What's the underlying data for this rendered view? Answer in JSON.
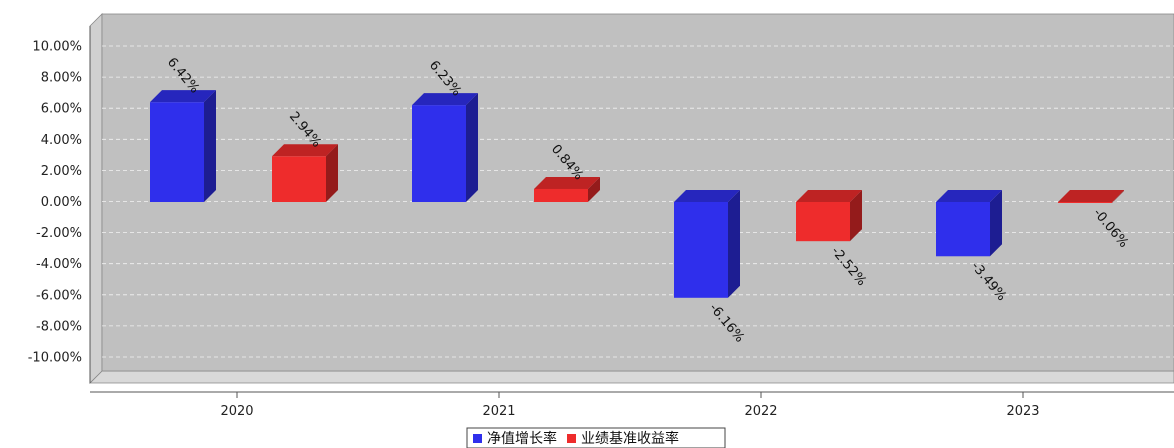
{
  "chart_data": {
    "type": "bar",
    "categories": [
      "2020",
      "2021",
      "2022",
      "2023"
    ],
    "series": [
      {
        "name": "净值增长率",
        "color": "#2f2fec",
        "values": [
          6.42,
          6.23,
          -6.16,
          -3.49
        ],
        "labels": [
          "6.42%",
          "6.23%",
          "-6.16%",
          "-3.49%"
        ]
      },
      {
        "name": "业绩基准收益率",
        "color": "#ee2c2c",
        "values": [
          2.94,
          0.84,
          -2.52,
          -0.06
        ],
        "labels": [
          "2.94%",
          "0.84%",
          "-2.52%",
          "-0.06%"
        ]
      }
    ],
    "ylim": [
      -12,
      12
    ],
    "yticks": [
      10,
      8,
      6,
      4,
      2,
      0,
      -2,
      -4,
      -6,
      -8,
      -10
    ],
    "ytick_labels": [
      "10.00%",
      "8.00%",
      "6.00%",
      "4.00%",
      "2.00%",
      "0.00%",
      "-2.00%",
      "-4.00%",
      "-6.00%",
      "-8.00%",
      "-10.00%"
    ],
    "grid": true,
    "legend_position": "bottom-center",
    "plot_background": "#c0c0c0",
    "three_d": true
  }
}
